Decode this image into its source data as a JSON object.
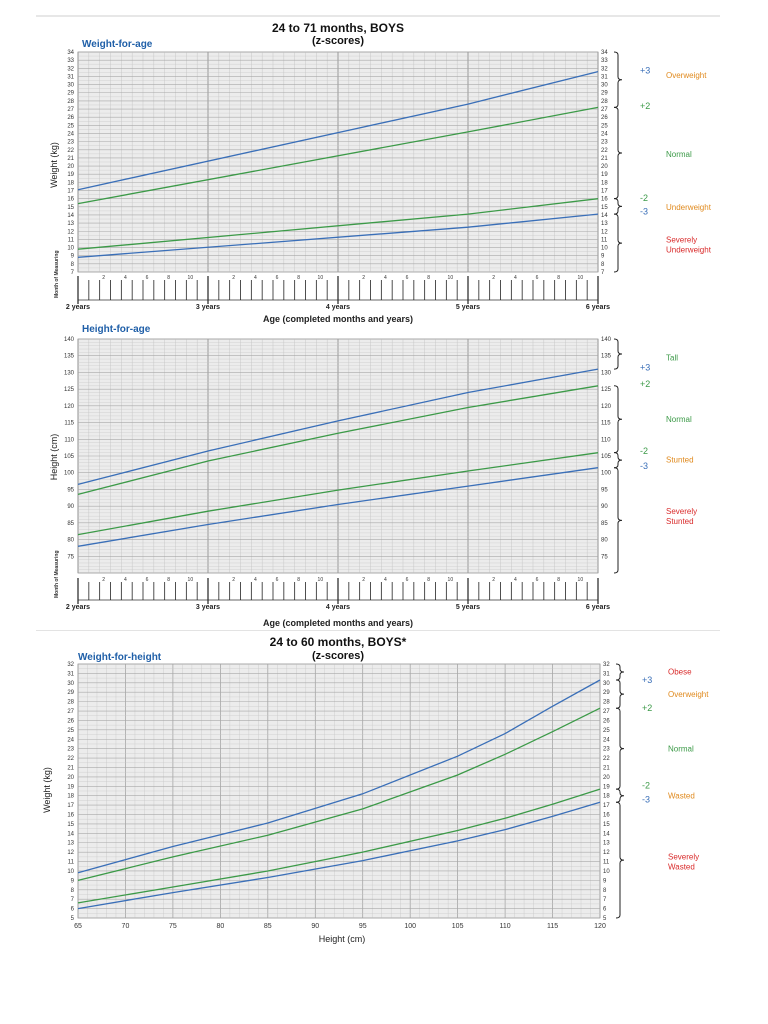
{
  "colors": {
    "blue": "#3a6fb8",
    "green": "#3c9a48",
    "orange": "#e08a1e",
    "red": "#d92b2b",
    "grid": "#c7c7c7",
    "plot_bg": "#ececec",
    "axis_title": "#1f5fa8"
  },
  "chart_data": [
    {
      "id": "wfa",
      "type": "line",
      "title": "24 to 71 months, BOYS",
      "subtitle": "(z-scores)",
      "chart_label": "Weight-for-age",
      "ylabel": "Weight (kg)",
      "xlabel": "Age (completed months and years)",
      "xlim": [
        24,
        72
      ],
      "ylim": [
        7,
        34
      ],
      "grid": true,
      "y_ticks": [
        7,
        8,
        9,
        10,
        11,
        12,
        13,
        14,
        15,
        16,
        17,
        18,
        19,
        20,
        21,
        22,
        23,
        24,
        25,
        26,
        27,
        28,
        29,
        30,
        31,
        32,
        33,
        34
      ],
      "x_year_labels": [
        {
          "x": 24,
          "label": "2 years"
        },
        {
          "x": 36,
          "label": "3 years"
        },
        {
          "x": 48,
          "label": "4 years"
        },
        {
          "x": 60,
          "label": "5 years"
        },
        {
          "x": 72,
          "label": "6 years"
        }
      ],
      "month_labels": [
        "2",
        "4",
        "6",
        "8",
        "10"
      ],
      "month_axis_label": "Month of Measuring",
      "series": [
        {
          "name": "+3",
          "color": "blue",
          "x": [
            24,
            60,
            72
          ],
          "y": [
            17.1,
            27.6,
            31.6
          ]
        },
        {
          "name": "+2",
          "color": "green",
          "x": [
            24,
            60,
            72
          ],
          "y": [
            15.4,
            24.2,
            27.2
          ]
        },
        {
          "name": "-2",
          "color": "green",
          "x": [
            24,
            60,
            72
          ],
          "y": [
            9.8,
            14.1,
            16.0
          ]
        },
        {
          "name": "-3",
          "color": "blue",
          "x": [
            24,
            60,
            72
          ],
          "y": [
            8.8,
            12.5,
            14.1
          ]
        }
      ],
      "z_labels": [
        {
          "text": "+3",
          "color": "blue",
          "y": 31.7
        },
        {
          "text": "+2",
          "color": "green",
          "y": 27.4
        },
        {
          "text": "-2",
          "color": "green",
          "y": 16.1
        },
        {
          "text": "-3",
          "color": "blue",
          "y": 14.4
        }
      ],
      "categories": [
        {
          "lines": [
            "Overweight"
          ],
          "color": "orange",
          "range": [
            27.2,
            34
          ],
          "text_y": 31.2
        },
        {
          "lines": [
            "Normal"
          ],
          "color": "green",
          "range": [
            16.0,
            27.2
          ],
          "text_y": 21.5
        },
        {
          "lines": [
            "Underweight"
          ],
          "color": "orange",
          "range": [
            14.1,
            16.0
          ],
          "text_y": 15.0
        },
        {
          "lines": [
            "Severely",
            "Underweight"
          ],
          "color": "red",
          "range": [
            7,
            14.1
          ],
          "text_y": 10.4
        }
      ]
    },
    {
      "id": "hfa",
      "type": "line",
      "chart_label": "Height-for-age",
      "ylabel": "Height (cm)",
      "xlabel": "Age (completed months and years)",
      "xlim": [
        24,
        72
      ],
      "ylim": [
        70,
        140
      ],
      "grid": true,
      "y_ticks": [
        75,
        80,
        85,
        90,
        95,
        100,
        105,
        110,
        115,
        120,
        125,
        130,
        135,
        140
      ],
      "x_year_labels": [
        {
          "x": 24,
          "label": "2 years"
        },
        {
          "x": 36,
          "label": "3 years"
        },
        {
          "x": 48,
          "label": "4 years"
        },
        {
          "x": 60,
          "label": "5 years"
        },
        {
          "x": 72,
          "label": "6 years"
        }
      ],
      "month_labels": [
        "2",
        "4",
        "6",
        "8",
        "10"
      ],
      "month_axis_label": "Month of Measuring",
      "series": [
        {
          "name": "+3",
          "color": "blue",
          "x": [
            24,
            36,
            48,
            60,
            72
          ],
          "y": [
            96.5,
            106.5,
            115.5,
            124,
            131
          ]
        },
        {
          "name": "+2",
          "color": "green",
          "x": [
            24,
            36,
            48,
            60,
            72
          ],
          "y": [
            93.5,
            103.5,
            111.8,
            119.5,
            126
          ]
        },
        {
          "name": "-2",
          "color": "green",
          "x": [
            24,
            36,
            48,
            60,
            72
          ],
          "y": [
            81.5,
            88.5,
            94.8,
            100.5,
            106
          ]
        },
        {
          "name": "-3",
          "color": "blue",
          "x": [
            24,
            36,
            48,
            60,
            72
          ],
          "y": [
            78,
            84.5,
            90.5,
            96,
            101.5
          ]
        }
      ],
      "z_labels": [
        {
          "text": "+3",
          "color": "blue",
          "y": 131.5
        },
        {
          "text": "+2",
          "color": "green",
          "y": 126.5
        },
        {
          "text": "-2",
          "color": "green",
          "y": 106.5
        },
        {
          "text": "-3",
          "color": "blue",
          "y": 102
        }
      ],
      "categories": [
        {
          "lines": [
            "Tall"
          ],
          "color": "green",
          "range": [
            131,
            140
          ],
          "text_y": 134.5
        },
        {
          "lines": [
            "Normal"
          ],
          "color": "green",
          "range": [
            106,
            126
          ],
          "text_y": 116
        },
        {
          "lines": [
            "Stunted"
          ],
          "color": "orange",
          "range": [
            101.5,
            106
          ],
          "text_y": 104
        },
        {
          "lines": [
            "Severely",
            "Stunted"
          ],
          "color": "red",
          "range": [
            70,
            101.5
          ],
          "text_y": 87
        }
      ]
    },
    {
      "id": "wfh",
      "type": "line",
      "title": "24 to 60 months, BOYS*",
      "subtitle": "(z-scores)",
      "chart_label": "Weight-for-height",
      "ylabel": "Weight (kg)",
      "xlabel": "Height (cm)",
      "xlim": [
        65,
        120
      ],
      "ylim": [
        5,
        32
      ],
      "grid": true,
      "y_ticks": [
        5,
        6,
        7,
        8,
        9,
        10,
        11,
        12,
        13,
        14,
        15,
        16,
        17,
        18,
        19,
        20,
        21,
        22,
        23,
        24,
        25,
        26,
        27,
        28,
        29,
        30,
        31,
        32
      ],
      "x_ticks": [
        65,
        70,
        75,
        80,
        85,
        90,
        95,
        100,
        105,
        110,
        115,
        120
      ],
      "series": [
        {
          "name": "+3",
          "color": "blue",
          "x": [
            65,
            75,
            85,
            95,
            105,
            110,
            115,
            120
          ],
          "y": [
            9.8,
            12.6,
            15.1,
            18.2,
            22.2,
            24.6,
            27.5,
            30.3
          ]
        },
        {
          "name": "+2",
          "color": "green",
          "x": [
            65,
            75,
            85,
            95,
            105,
            110,
            115,
            120
          ],
          "y": [
            9.0,
            11.5,
            13.8,
            16.6,
            20.2,
            22.4,
            24.8,
            27.3
          ]
        },
        {
          "name": "-2",
          "color": "green",
          "x": [
            65,
            75,
            85,
            95,
            105,
            110,
            115,
            120
          ],
          "y": [
            6.6,
            8.3,
            10.0,
            12.0,
            14.3,
            15.6,
            17.1,
            18.7
          ]
        },
        {
          "name": "-3",
          "color": "blue",
          "x": [
            65,
            75,
            85,
            95,
            105,
            110,
            115,
            120
          ],
          "y": [
            6.0,
            7.7,
            9.3,
            11.1,
            13.2,
            14.4,
            15.8,
            17.3
          ]
        }
      ],
      "z_labels": [
        {
          "text": "+3",
          "color": "blue",
          "y": 30.3
        },
        {
          "text": "+2",
          "color": "green",
          "y": 27.3
        },
        {
          "text": "-2",
          "color": "green",
          "y": 19.1
        },
        {
          "text": "-3",
          "color": "blue",
          "y": 17.6
        }
      ],
      "categories": [
        {
          "lines": [
            "Obese"
          ],
          "color": "red",
          "range": [
            30.3,
            32
          ],
          "text_y": 31.2
        },
        {
          "lines": [
            "Overweight"
          ],
          "color": "orange",
          "range": [
            27.3,
            30.3
          ],
          "text_y": 28.8
        },
        {
          "lines": [
            "Normal"
          ],
          "color": "green",
          "range": [
            18.7,
            27.3
          ],
          "text_y": 23.0
        },
        {
          "lines": [
            "Wasted"
          ],
          "color": "orange",
          "range": [
            17.3,
            18.7
          ],
          "text_y": 18.0
        },
        {
          "lines": [
            "Severely",
            "Wasted"
          ],
          "color": "red",
          "range": [
            5,
            17.3
          ],
          "text_y": 11.0
        }
      ]
    }
  ]
}
